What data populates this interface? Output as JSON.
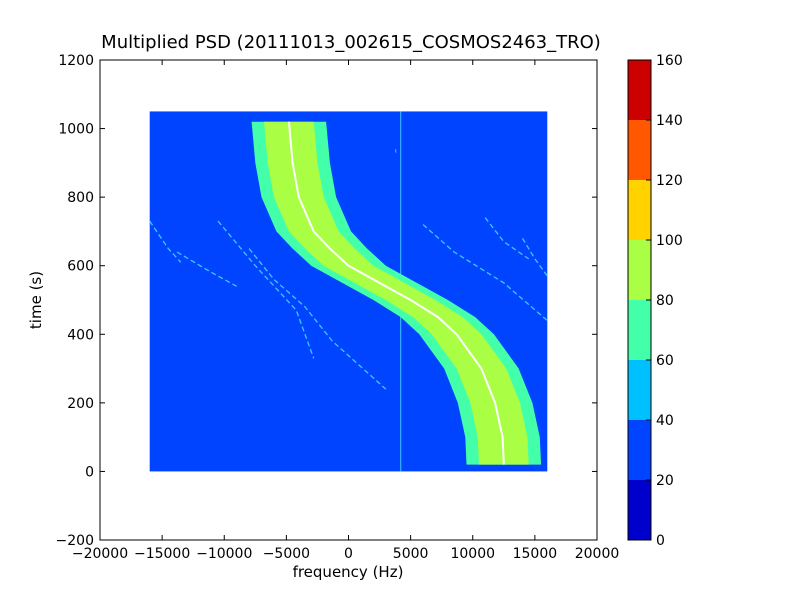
{
  "chart_data": {
    "type": "heatmap",
    "title": "Multiplied PSD (20111013_002615_COSMOS2463_TRO)",
    "xlabel": "frequency (Hz)",
    "ylabel": "time (s)",
    "xlim": [
      -20000,
      20000
    ],
    "ylim": [
      -200,
      1200
    ],
    "x_ticks": [
      -20000,
      -15000,
      -10000,
      -5000,
      0,
      5000,
      10000,
      15000,
      20000
    ],
    "x_tick_labels": [
      "−20000",
      "−15000",
      "−10000",
      "−5000",
      "0",
      "5000",
      "10000",
      "15000",
      "20000"
    ],
    "y_ticks": [
      -200,
      0,
      200,
      400,
      600,
      800,
      1000,
      1200
    ],
    "y_tick_labels": [
      "−200",
      "0",
      "200",
      "400",
      "600",
      "800",
      "1000",
      "1200"
    ],
    "data_extent": {
      "x": [
        -16000,
        16000
      ],
      "y": [
        0,
        1050
      ]
    },
    "background_level": [
      20,
      40
    ],
    "colorbar": {
      "levels": [
        0,
        20,
        40,
        60,
        80,
        100,
        120,
        140,
        160
      ],
      "tick_labels": [
        "0",
        "20",
        "40",
        "60",
        "80",
        "100",
        "120",
        "140",
        "160"
      ],
      "colors": [
        "#0000cd",
        "#0044ff",
        "#00c0ff",
        "#44ffaa",
        "#aaff44",
        "#ffd200",
        "#ff5800",
        "#cd0000"
      ]
    },
    "main_track": {
      "points": [
        {
          "t": 20,
          "f": 12500
        },
        {
          "t": 100,
          "f": 12400
        },
        {
          "t": 200,
          "f": 11800
        },
        {
          "t": 300,
          "f": 10700
        },
        {
          "t": 400,
          "f": 8700
        },
        {
          "t": 450,
          "f": 7200
        },
        {
          "t": 500,
          "f": 5000
        },
        {
          "t": 550,
          "f": 2500
        },
        {
          "t": 600,
          "f": 0
        },
        {
          "t": 650,
          "f": -1500
        },
        {
          "t": 700,
          "f": -2800
        },
        {
          "t": 800,
          "f": -4000
        },
        {
          "t": 900,
          "f": -4500
        },
        {
          "t": 1020,
          "f": -4800
        }
      ],
      "bands": [
        {
          "level_range": [
            60,
            80
          ],
          "half_width_hz": 3000
        },
        {
          "level_range": [
            80,
            100
          ],
          "half_width_hz": 2000
        }
      ],
      "center_color": "#ffffff"
    },
    "faint_tracks": [
      [
        {
          "t": 730,
          "f": -16000
        },
        {
          "t": 650,
          "f": -14500
        },
        {
          "t": 610,
          "f": -13500
        }
      ],
      [
        {
          "t": 640,
          "f": -13800
        },
        {
          "t": 580,
          "f": -11000
        },
        {
          "t": 540,
          "f": -9000
        }
      ],
      [
        {
          "t": 730,
          "f": -10500
        },
        {
          "t": 600,
          "f": -7500
        },
        {
          "t": 470,
          "f": -4200
        },
        {
          "t": 330,
          "f": -2800
        }
      ],
      [
        {
          "t": 650,
          "f": -8000
        },
        {
          "t": 560,
          "f": -6000
        },
        {
          "t": 480,
          "f": -3500
        },
        {
          "t": 380,
          "f": -1300
        },
        {
          "t": 240,
          "f": 3000
        }
      ],
      [
        {
          "t": 720,
          "f": 6000
        },
        {
          "t": 640,
          "f": 8500
        },
        {
          "t": 550,
          "f": 12500
        },
        {
          "t": 440,
          "f": 16000
        }
      ],
      [
        {
          "t": 740,
          "f": 11000
        },
        {
          "t": 670,
          "f": 12500
        },
        {
          "t": 620,
          "f": 14500
        }
      ],
      [
        {
          "t": 680,
          "f": 14000
        },
        {
          "t": 620,
          "f": 15000
        },
        {
          "t": 570,
          "f": 16000
        }
      ]
    ],
    "vertical_lines": [
      {
        "f": 3800,
        "t_range": [
          930,
          940
        ]
      },
      {
        "f": 4200,
        "t_range": [
          0,
          1050
        ]
      }
    ]
  }
}
